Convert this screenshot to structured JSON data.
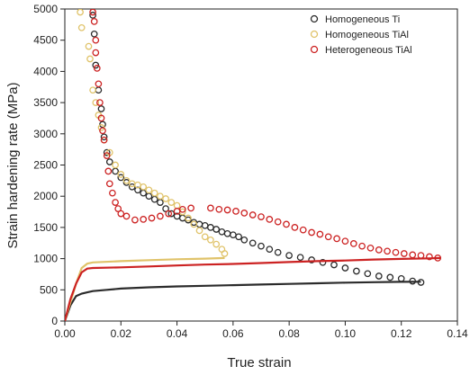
{
  "chart_data": {
    "type": "scatter",
    "title": "",
    "xlabel": "True strain",
    "ylabel": "Strain hardening rate (MPa)",
    "xlim": [
      0.0,
      0.14
    ],
    "ylim": [
      0,
      5000
    ],
    "xticks": [
      0.0,
      0.02,
      0.04,
      0.06,
      0.08,
      0.1,
      0.12,
      0.14
    ],
    "xtick_labels": [
      "0.00",
      "0.02",
      "0.04",
      "0.06",
      "0.08",
      "0.10",
      "0.12",
      "0.14"
    ],
    "yticks": [
      0,
      500,
      1000,
      1500,
      2000,
      2500,
      3000,
      3500,
      4000,
      4500,
      5000
    ],
    "ytick_labels": [
      "0",
      "500",
      "1000",
      "1500",
      "2000",
      "2500",
      "3000",
      "3500",
      "4000",
      "4500",
      "5000"
    ],
    "grid": false,
    "legend_position": "top-right",
    "series": [
      {
        "name": "Homogeneous Ti",
        "color": "#2b2b2b",
        "marker": "open-circle",
        "points": [
          [
            0.01,
            4900
          ],
          [
            0.0105,
            4600
          ],
          [
            0.011,
            4100
          ],
          [
            0.012,
            3700
          ],
          [
            0.013,
            3400
          ],
          [
            0.0135,
            3150
          ],
          [
            0.014,
            2950
          ],
          [
            0.015,
            2700
          ],
          [
            0.016,
            2550
          ],
          [
            0.018,
            2400
          ],
          [
            0.02,
            2300
          ],
          [
            0.022,
            2220
          ],
          [
            0.024,
            2150
          ],
          [
            0.026,
            2100
          ],
          [
            0.028,
            2050
          ],
          [
            0.03,
            2000
          ],
          [
            0.032,
            1950
          ],
          [
            0.034,
            1900
          ],
          [
            0.036,
            1800
          ],
          [
            0.038,
            1720
          ],
          [
            0.04,
            1680
          ],
          [
            0.042,
            1650
          ],
          [
            0.044,
            1620
          ],
          [
            0.046,
            1580
          ],
          [
            0.048,
            1550
          ],
          [
            0.05,
            1530
          ],
          [
            0.052,
            1500
          ],
          [
            0.054,
            1470
          ],
          [
            0.056,
            1430
          ],
          [
            0.058,
            1400
          ],
          [
            0.06,
            1380
          ],
          [
            0.062,
            1350
          ],
          [
            0.064,
            1300
          ],
          [
            0.067,
            1250
          ],
          [
            0.07,
            1200
          ],
          [
            0.073,
            1150
          ],
          [
            0.076,
            1100
          ],
          [
            0.08,
            1050
          ],
          [
            0.084,
            1020
          ],
          [
            0.088,
            980
          ],
          [
            0.092,
            940
          ],
          [
            0.096,
            900
          ],
          [
            0.1,
            850
          ],
          [
            0.104,
            800
          ],
          [
            0.108,
            760
          ],
          [
            0.112,
            720
          ],
          [
            0.116,
            700
          ],
          [
            0.12,
            680
          ],
          [
            0.124,
            640
          ],
          [
            0.127,
            620
          ]
        ],
        "curve": [
          [
            0.0,
            0
          ],
          [
            0.002,
            250
          ],
          [
            0.004,
            400
          ],
          [
            0.006,
            440
          ],
          [
            0.008,
            460
          ],
          [
            0.01,
            480
          ],
          [
            0.015,
            500
          ],
          [
            0.02,
            520
          ],
          [
            0.03,
            540
          ],
          [
            0.04,
            555
          ],
          [
            0.05,
            565
          ],
          [
            0.06,
            575
          ],
          [
            0.07,
            585
          ],
          [
            0.08,
            595
          ],
          [
            0.09,
            605
          ],
          [
            0.1,
            615
          ],
          [
            0.11,
            622
          ],
          [
            0.12,
            628
          ],
          [
            0.127,
            630
          ]
        ]
      },
      {
        "name": "Homogeneous TiAl",
        "color": "#e0c36a",
        "marker": "open-circle",
        "points": [
          [
            0.0055,
            4950
          ],
          [
            0.006,
            4700
          ],
          [
            0.0085,
            4400
          ],
          [
            0.009,
            4200
          ],
          [
            0.01,
            3700
          ],
          [
            0.011,
            3500
          ],
          [
            0.012,
            3300
          ],
          [
            0.013,
            3100
          ],
          [
            0.014,
            2900
          ],
          [
            0.016,
            2700
          ],
          [
            0.018,
            2500
          ],
          [
            0.02,
            2350
          ],
          [
            0.022,
            2250
          ],
          [
            0.024,
            2200
          ],
          [
            0.026,
            2180
          ],
          [
            0.028,
            2150
          ],
          [
            0.03,
            2100
          ],
          [
            0.032,
            2050
          ],
          [
            0.034,
            2000
          ],
          [
            0.036,
            1960
          ],
          [
            0.038,
            1900
          ],
          [
            0.04,
            1850
          ],
          [
            0.042,
            1750
          ],
          [
            0.044,
            1650
          ],
          [
            0.046,
            1550
          ],
          [
            0.048,
            1450
          ],
          [
            0.05,
            1350
          ],
          [
            0.052,
            1300
          ],
          [
            0.054,
            1230
          ],
          [
            0.056,
            1150
          ],
          [
            0.057,
            1080
          ]
        ],
        "curve": [
          [
            0.0,
            0
          ],
          [
            0.002,
            300
          ],
          [
            0.004,
            600
          ],
          [
            0.006,
            850
          ],
          [
            0.008,
            920
          ],
          [
            0.01,
            940
          ],
          [
            0.02,
            960
          ],
          [
            0.03,
            975
          ],
          [
            0.04,
            990
          ],
          [
            0.05,
            1000
          ],
          [
            0.057,
            1010
          ]
        ]
      },
      {
        "name": "Heterogeneous TiAl",
        "color": "#cc2222",
        "marker": "open-circle",
        "points": [
          [
            0.01,
            4950
          ],
          [
            0.0105,
            4800
          ],
          [
            0.011,
            4500
          ],
          [
            0.011,
            4300
          ],
          [
            0.0115,
            4050
          ],
          [
            0.012,
            3800
          ],
          [
            0.0125,
            3500
          ],
          [
            0.013,
            3250
          ],
          [
            0.0135,
            3050
          ],
          [
            0.014,
            2900
          ],
          [
            0.015,
            2650
          ],
          [
            0.0155,
            2400
          ],
          [
            0.016,
            2200
          ],
          [
            0.017,
            2050
          ],
          [
            0.018,
            1900
          ],
          [
            0.019,
            1800
          ],
          [
            0.02,
            1720
          ],
          [
            0.022,
            1680
          ],
          [
            0.025,
            1620
          ],
          [
            0.028,
            1630
          ],
          [
            0.031,
            1650
          ],
          [
            0.034,
            1680
          ],
          [
            0.037,
            1720
          ],
          [
            0.04,
            1760
          ],
          [
            0.042,
            1790
          ],
          [
            0.045,
            1810
          ],
          [
            0.052,
            1810
          ],
          [
            0.055,
            1790
          ],
          [
            0.058,
            1780
          ],
          [
            0.061,
            1760
          ],
          [
            0.064,
            1730
          ],
          [
            0.067,
            1700
          ],
          [
            0.07,
            1670
          ],
          [
            0.073,
            1630
          ],
          [
            0.076,
            1590
          ],
          [
            0.079,
            1550
          ],
          [
            0.082,
            1500
          ],
          [
            0.085,
            1460
          ],
          [
            0.088,
            1420
          ],
          [
            0.091,
            1390
          ],
          [
            0.094,
            1350
          ],
          [
            0.097,
            1320
          ],
          [
            0.1,
            1280
          ],
          [
            0.103,
            1240
          ],
          [
            0.106,
            1200
          ],
          [
            0.109,
            1170
          ],
          [
            0.112,
            1140
          ],
          [
            0.115,
            1120
          ],
          [
            0.118,
            1100
          ],
          [
            0.121,
            1080
          ],
          [
            0.124,
            1060
          ],
          [
            0.127,
            1050
          ],
          [
            0.13,
            1030
          ],
          [
            0.133,
            1010
          ]
        ],
        "curve": [
          [
            0.0,
            0
          ],
          [
            0.002,
            350
          ],
          [
            0.004,
            600
          ],
          [
            0.006,
            780
          ],
          [
            0.008,
            840
          ],
          [
            0.01,
            850
          ],
          [
            0.02,
            860
          ],
          [
            0.03,
            875
          ],
          [
            0.04,
            890
          ],
          [
            0.05,
            905
          ],
          [
            0.06,
            915
          ],
          [
            0.07,
            930
          ],
          [
            0.08,
            945
          ],
          [
            0.09,
            960
          ],
          [
            0.1,
            970
          ],
          [
            0.11,
            985
          ],
          [
            0.12,
            995
          ],
          [
            0.13,
            1005
          ],
          [
            0.134,
            1010
          ]
        ]
      }
    ]
  }
}
